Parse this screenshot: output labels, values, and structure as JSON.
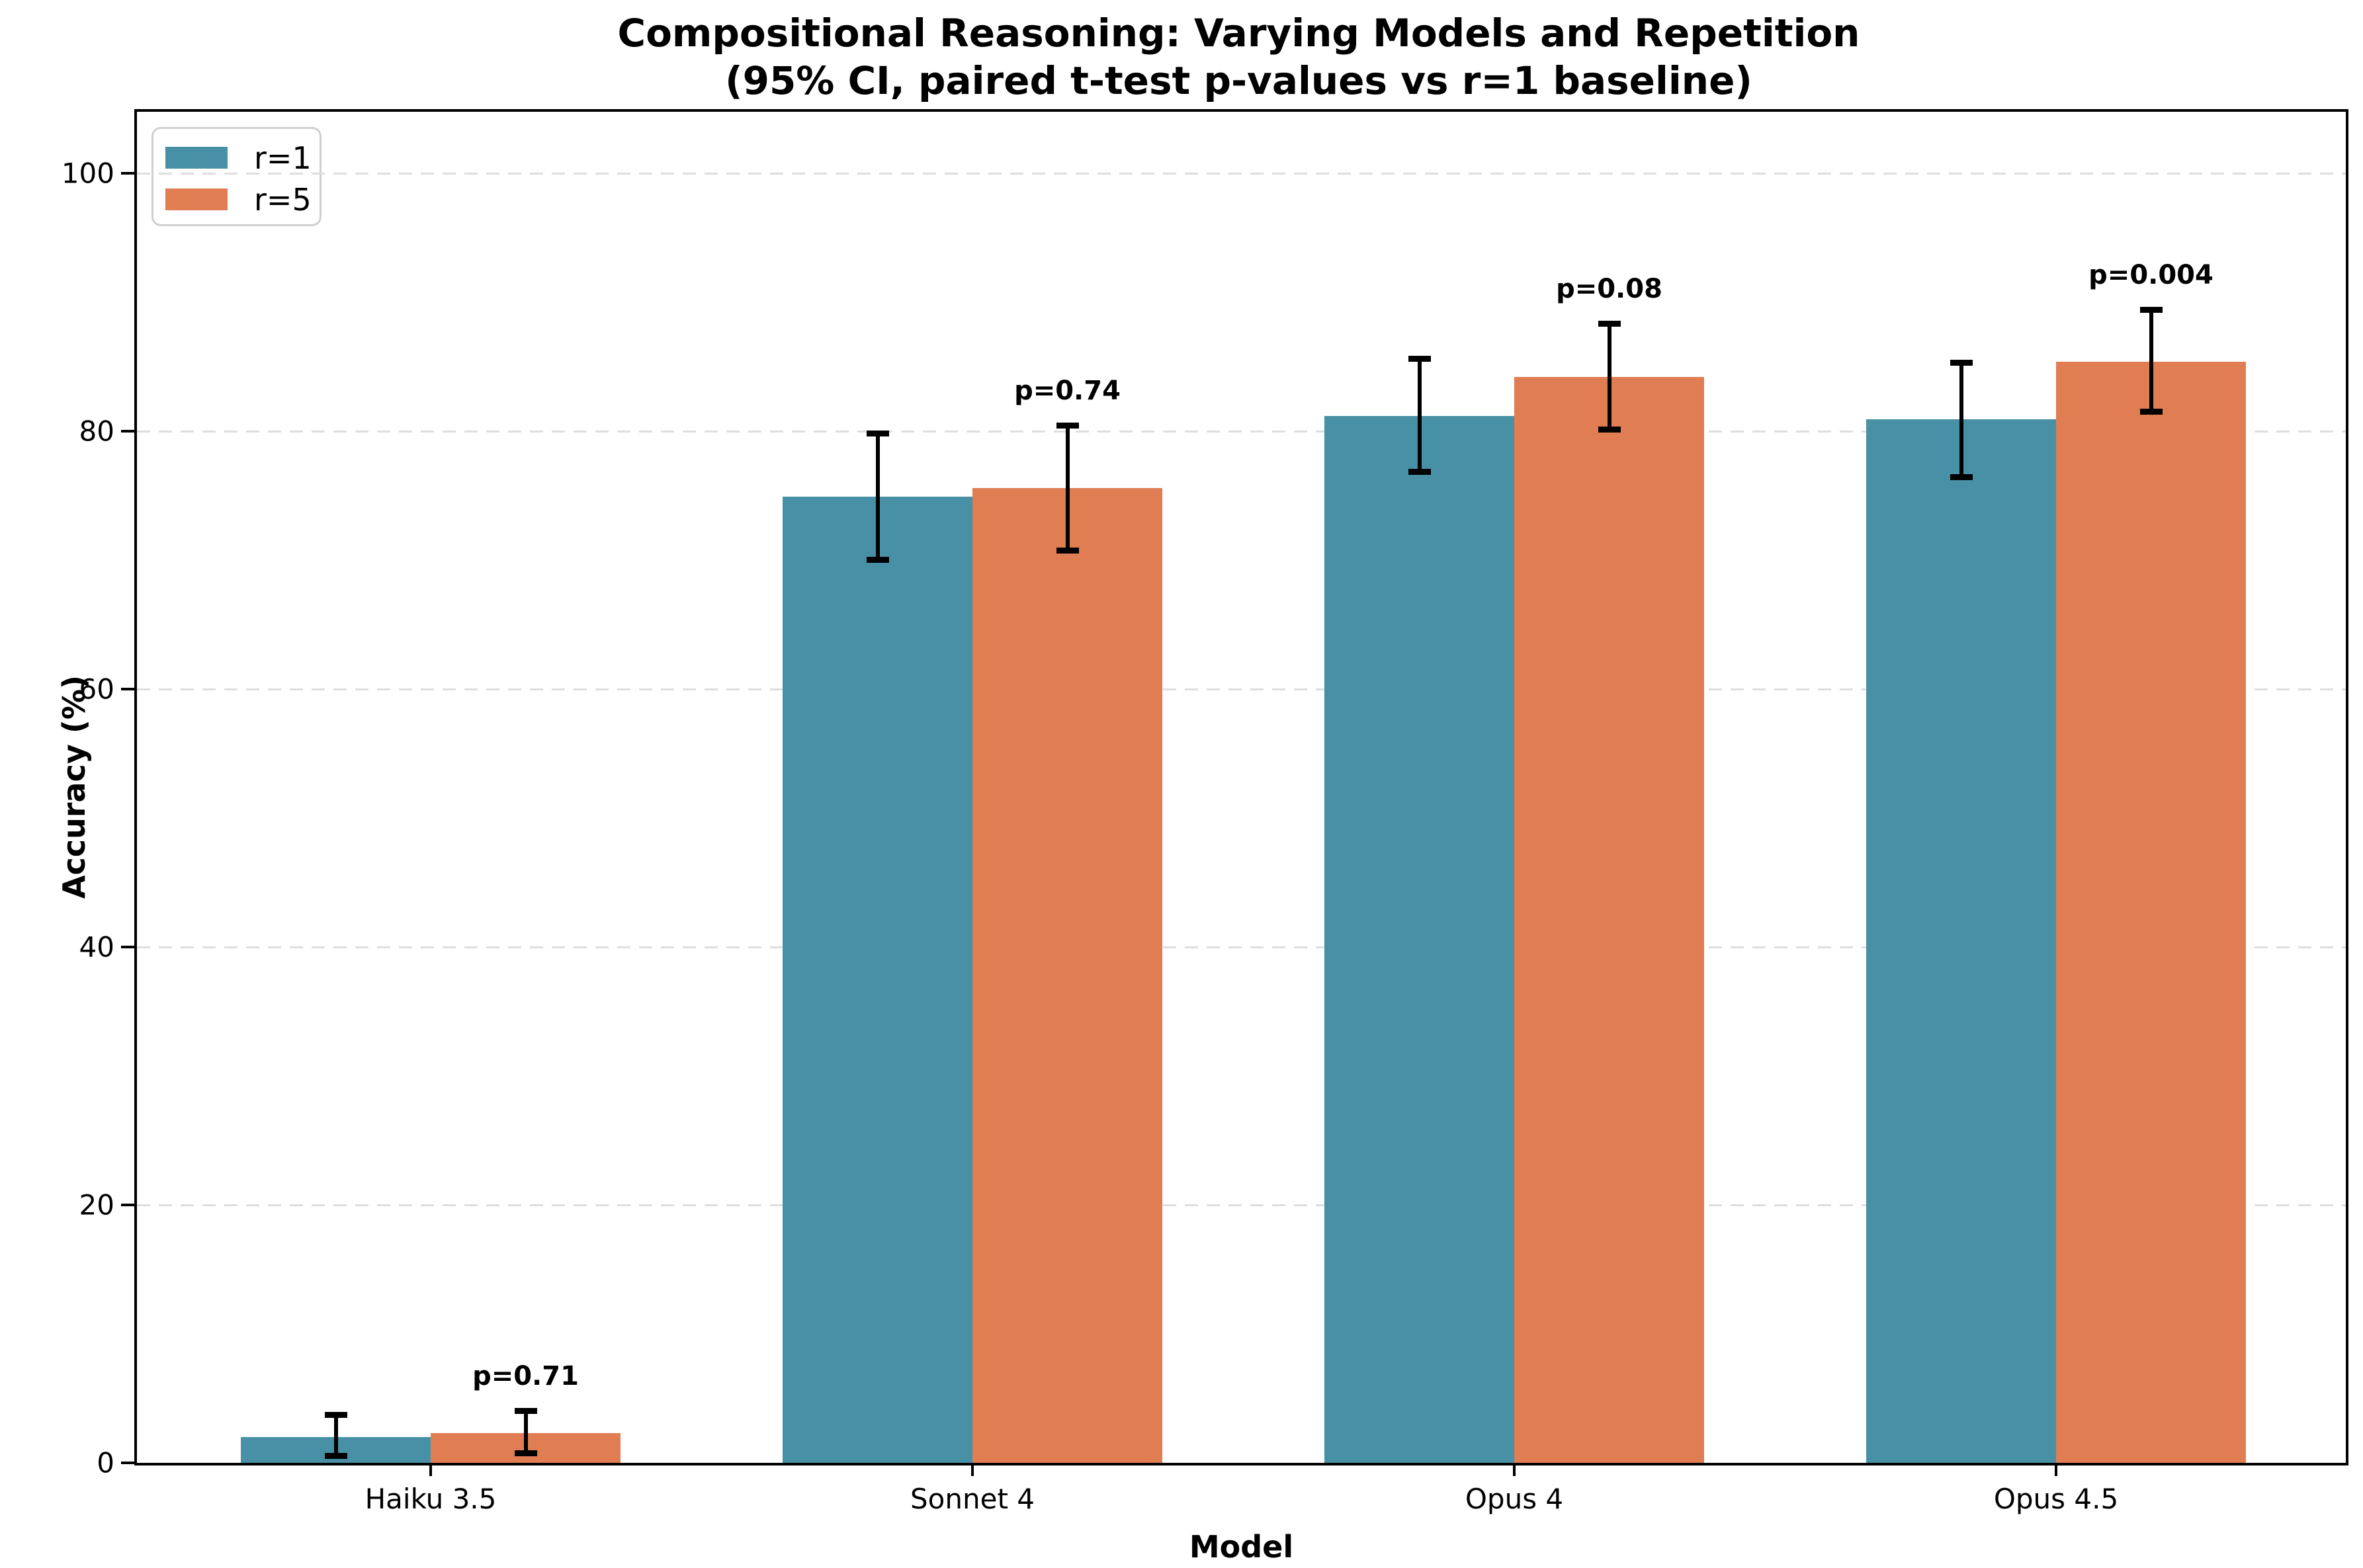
{
  "title_line1": "Compositional Reasoning: Varying Models and Repetition",
  "title_line2": "(95% CI, paired t-test p-values vs r=1 baseline)",
  "axes": {
    "x_label": "Model",
    "y_label": "Accuracy (%)",
    "y_ticks": [
      0,
      20,
      40,
      60,
      80,
      100
    ]
  },
  "legend": {
    "position": "upper left",
    "entries": [
      {
        "label": "r=1",
        "color": "#4890a5"
      },
      {
        "label": "r=5",
        "color": "#e07d53"
      }
    ]
  },
  "chart_data": {
    "type": "bar",
    "title": "Compositional Reasoning: Varying Models and Repetition (95% CI, paired t-test p-values vs r=1 baseline)",
    "xlabel": "Model",
    "ylabel": "Accuracy (%)",
    "ylim": [
      0,
      104.8
    ],
    "grid": "horizontal dashed at y=20,40,60,80,100",
    "categories": [
      "Haiku 3.5",
      "Sonnet 4",
      "Opus 4",
      "Opus 4.5"
    ],
    "series": [
      {
        "name": "r=1",
        "color": "#4890a5",
        "values": [
          2.0,
          74.9,
          81.2,
          80.9
        ],
        "ci_low": [
          0.5,
          70.0,
          76.8,
          76.4
        ],
        "ci_high": [
          3.7,
          79.8,
          85.6,
          85.3
        ]
      },
      {
        "name": "r=5",
        "color": "#e07d53",
        "values": [
          2.3,
          75.6,
          84.2,
          85.4
        ],
        "ci_low": [
          0.7,
          70.7,
          80.1,
          81.5
        ],
        "ci_high": [
          4.0,
          80.4,
          88.3,
          89.4
        ]
      }
    ],
    "p_value_labels": [
      "p=0.71",
      "p=0.74",
      "p=0.08",
      "p=0.004"
    ],
    "error_bar_color": "#000000"
  }
}
